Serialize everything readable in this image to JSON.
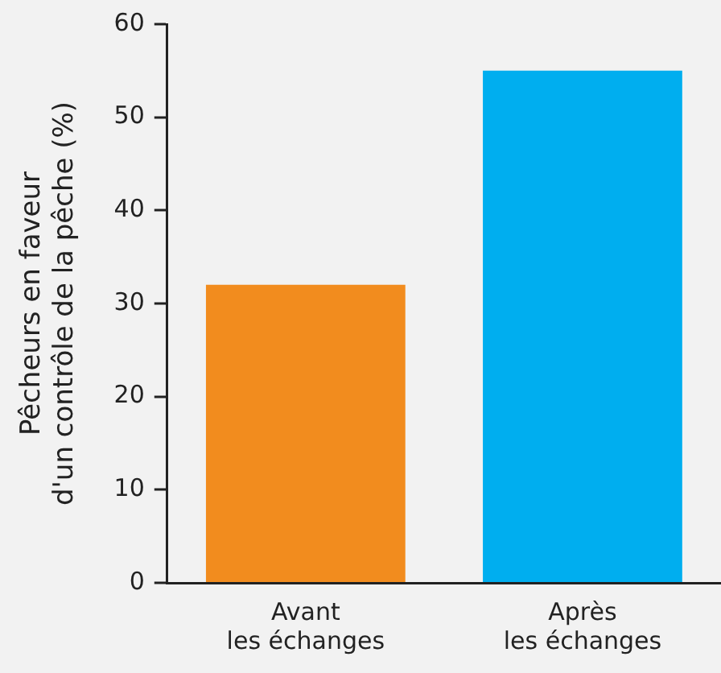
{
  "chart_data": {
    "type": "bar",
    "ylabel": "Pêcheurs en faveur\nd'un contrôle de la pêche (%)",
    "categories": [
      "Avant\nles échanges",
      "Après\nles échanges"
    ],
    "values": [
      32,
      55
    ],
    "colors": [
      "#f28c1e",
      "#00aeef"
    ],
    "ylim": [
      0,
      60
    ],
    "yticks": [
      0,
      10,
      20,
      30,
      40,
      50,
      60
    ],
    "grid": false,
    "legend": false
  }
}
